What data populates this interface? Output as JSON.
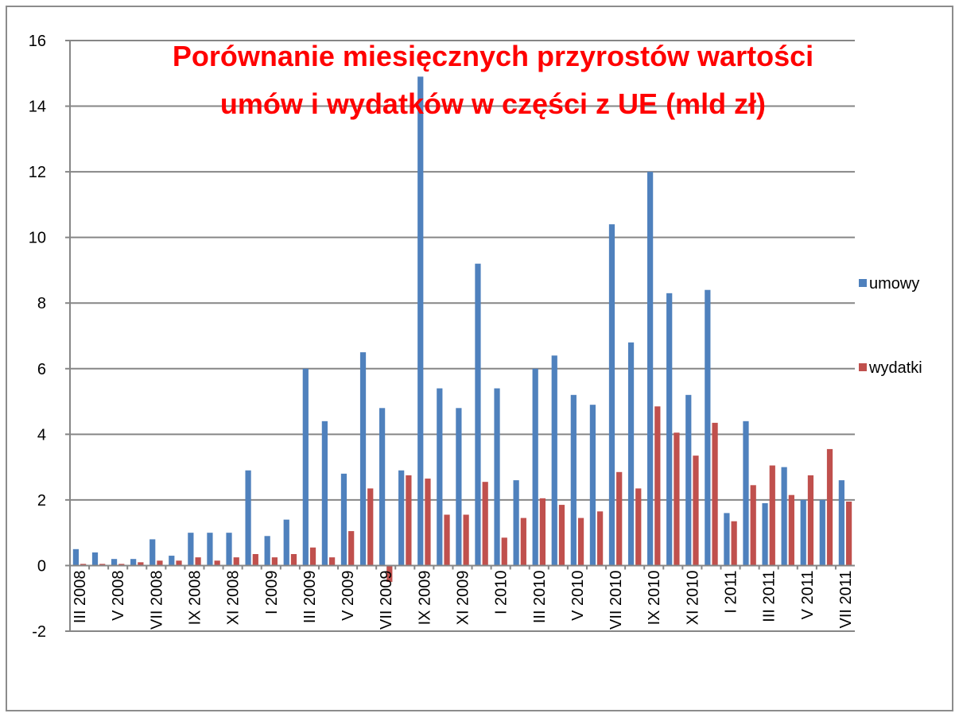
{
  "chart_data": {
    "type": "bar",
    "title": [
      "Porównanie miesięcznych przyrostów wartości",
      "umów i wydatków w części z UE (mld zł)"
    ],
    "categories": [
      "III 2008",
      null,
      "V 2008",
      null,
      "VII 2008",
      null,
      "IX 2008",
      null,
      "XI 2008",
      null,
      "I 2009",
      null,
      "III 2009",
      null,
      "V 2009",
      null,
      "VII 2009",
      null,
      "IX 2009",
      null,
      "XI 2009",
      null,
      "I 2010",
      null,
      "III 2010",
      null,
      "V 2010",
      null,
      "VII 2010",
      null,
      "IX 2010",
      null,
      "XI 2010",
      null,
      "I 2011",
      null,
      "III 2011",
      null,
      "V 2011",
      null,
      "VII 2011"
    ],
    "series": [
      {
        "name": "umowy",
        "color": "#4f81bd",
        "values": [
          0.5,
          0.4,
          0.2,
          0.2,
          0.8,
          0.3,
          1.0,
          1.0,
          1.0,
          2.9,
          0.9,
          1.4,
          6.0,
          4.4,
          2.8,
          6.5,
          4.8,
          2.9,
          14.9,
          5.4,
          4.8,
          9.2,
          5.4,
          2.6,
          6.0,
          6.4,
          5.2,
          4.9,
          10.4,
          6.8,
          12.0,
          8.3,
          5.2,
          8.4,
          1.6,
          4.4,
          1.9,
          3.0,
          2.0,
          2.0,
          2.6
        ]
      },
      {
        "name": "wydatki",
        "color": "#c0504d",
        "values": [
          0.05,
          0.05,
          0.05,
          0.1,
          0.15,
          0.15,
          0.25,
          0.15,
          0.25,
          0.35,
          0.25,
          0.35,
          0.55,
          0.25,
          1.05,
          2.35,
          -0.5,
          2.75,
          2.65,
          1.55,
          1.55,
          2.55,
          0.85,
          1.45,
          2.05,
          1.85,
          1.45,
          1.65,
          2.85,
          2.35,
          4.85,
          4.05,
          3.35,
          4.35,
          1.35,
          2.45,
          3.05,
          2.15,
          2.75,
          3.55,
          1.95
        ]
      }
    ],
    "ylim": [
      -2,
      16
    ],
    "yticks": [
      -2,
      0,
      2,
      4,
      6,
      8,
      10,
      12,
      14,
      16
    ],
    "grid": true,
    "legend": "right"
  }
}
